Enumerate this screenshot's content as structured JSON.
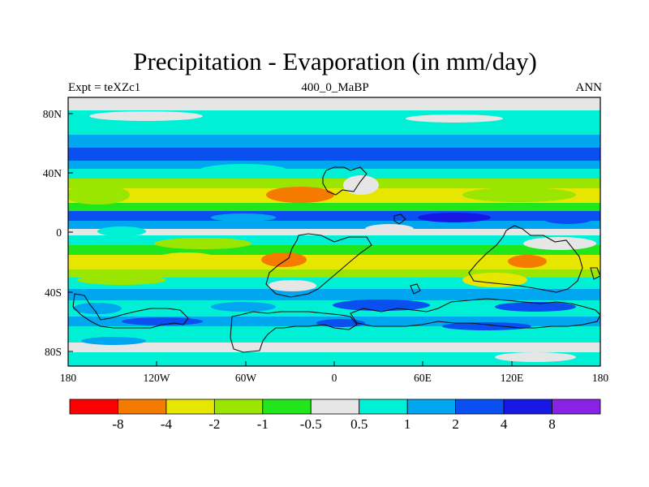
{
  "title": "Precipitation - Evaporation (in mm/day)",
  "left_label": "Expt = teXZc1",
  "center_label": "400_0_MaBP",
  "right_label": "ANN",
  "lat_ticks": [
    "80N",
    "40N",
    "0",
    "40S",
    "80S"
  ],
  "lon_ticks": [
    "180",
    "120W",
    "60W",
    "0",
    "60E",
    "120E",
    "180"
  ],
  "colorbar": {
    "labels": [
      "-8",
      "-4",
      "-2",
      "-1",
      "-0.5",
      "0.5",
      "1",
      "2",
      "4",
      "8"
    ],
    "colors": [
      "#ff0000",
      "#f57a00",
      "#e6e600",
      "#9be600",
      "#22e61c",
      "#e6e6e6",
      "#00f0d6",
      "#00a6f0",
      "#0a50f0",
      "#1818e6",
      "#8a22e6"
    ]
  }
}
